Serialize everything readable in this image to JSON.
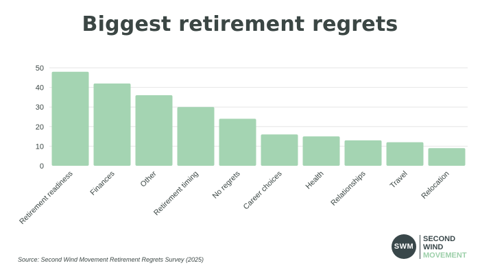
{
  "chart_data": {
    "type": "bar",
    "title": "Biggest retirement regrets",
    "categories": [
      "Retirement readiness",
      "Finances",
      "Other",
      "Retirement timing",
      "No regrets",
      "Career choices",
      "Health",
      "Relationships",
      "Travel",
      "Relocation"
    ],
    "values": [
      48,
      42,
      36,
      30,
      24,
      16,
      15,
      13,
      12,
      9
    ],
    "ylim": [
      0,
      50
    ],
    "yticks": [
      0,
      10,
      20,
      30,
      40,
      50
    ],
    "xlabel": "",
    "ylabel": "",
    "grid": true,
    "bar_color": "#a4d4b2",
    "grid_color": "#e6e6e6",
    "text_color": "#3b4644"
  },
  "source": "Source: Second Wind Movement Retirement Regrets Survey (2025)",
  "logo": {
    "initials": "SWM",
    "line1": "SECOND",
    "line2": "WIND",
    "line3": "MOVEMENT"
  }
}
